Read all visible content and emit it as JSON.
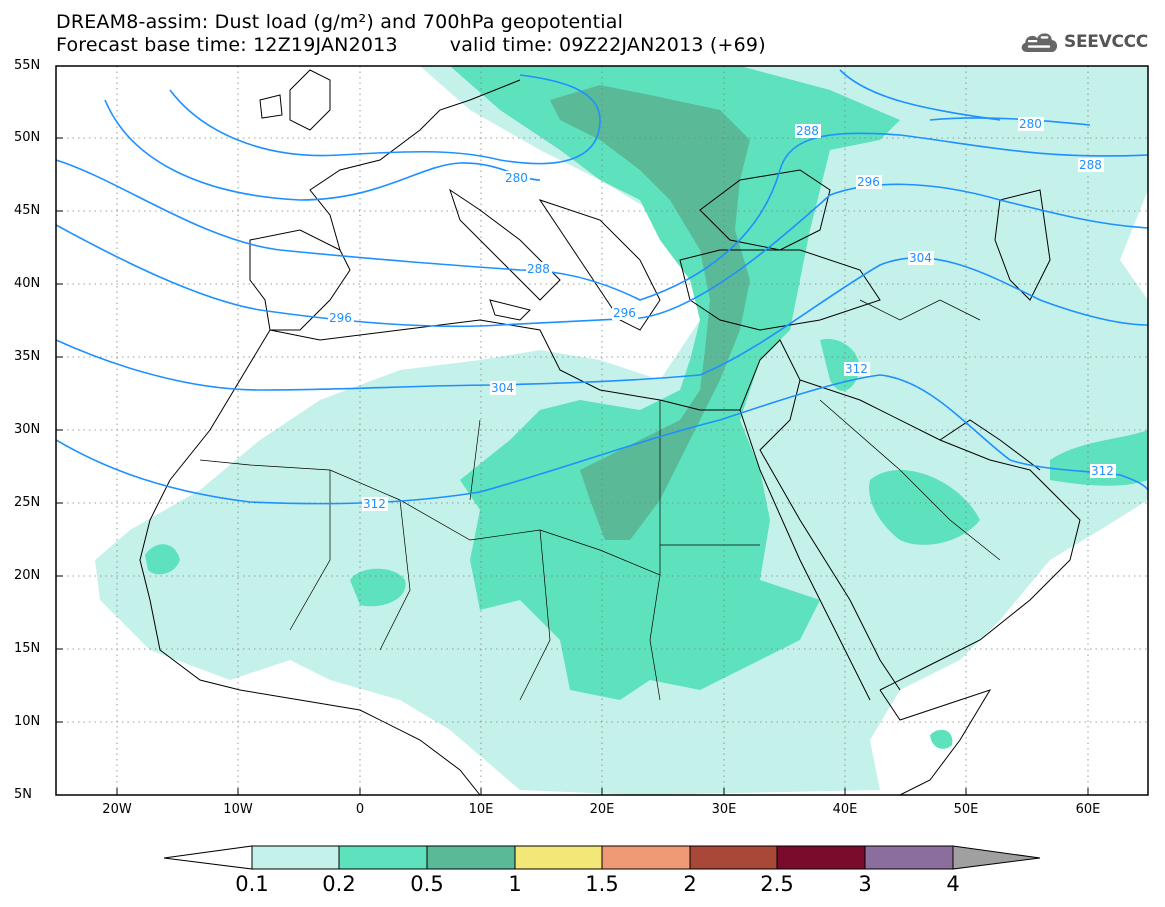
{
  "title_line1": "DREAM8-assim: Dust load (g/m²) and 700hPa geopotential",
  "title_line2_base": "Forecast base time: 12Z19JAN2013",
  "title_line2_valid": "valid time: 09Z22JAN2013 (+69)",
  "logo_text": "SEEVCCC",
  "logo_icon": "cloud-icon",
  "lat_labels": [
    "55N",
    "50N",
    "45N",
    "40N",
    "35N",
    "30N",
    "25N",
    "20N",
    "15N",
    "10N",
    "5N"
  ],
  "lon_labels": [
    "20W",
    "10W",
    "0",
    "10E",
    "20E",
    "30E",
    "40E",
    "50E",
    "60E"
  ],
  "colorbar": {
    "labels": [
      "0.1",
      "0.2",
      "0.5",
      "1",
      "1.5",
      "2",
      "2.5",
      "3",
      "4"
    ],
    "colors": [
      "#c5f1eb",
      "#5ee1bd",
      "#5aba98",
      "#f3e778",
      "#ef9a75",
      "#e0805a",
      "#a84838",
      "#7a0b2d",
      "#8c6e9e"
    ],
    "under_color": "#ffffff",
    "over_color": "#a0a0a0"
  },
  "contours": [
    {
      "label": "280",
      "value": 280
    },
    {
      "label": "288",
      "value": 288
    },
    {
      "label": "296",
      "value": 296
    },
    {
      "label": "304",
      "value": 304
    },
    {
      "label": "312",
      "value": 312
    }
  ],
  "contour_label_texts": [
    "280",
    "288",
    "296",
    "288",
    "280",
    "288",
    "296",
    "304",
    "296",
    "304",
    "312",
    "312",
    "312"
  ],
  "colors": {
    "contour": "#1e90ff",
    "border": "#000000",
    "grid": "#808080"
  }
}
